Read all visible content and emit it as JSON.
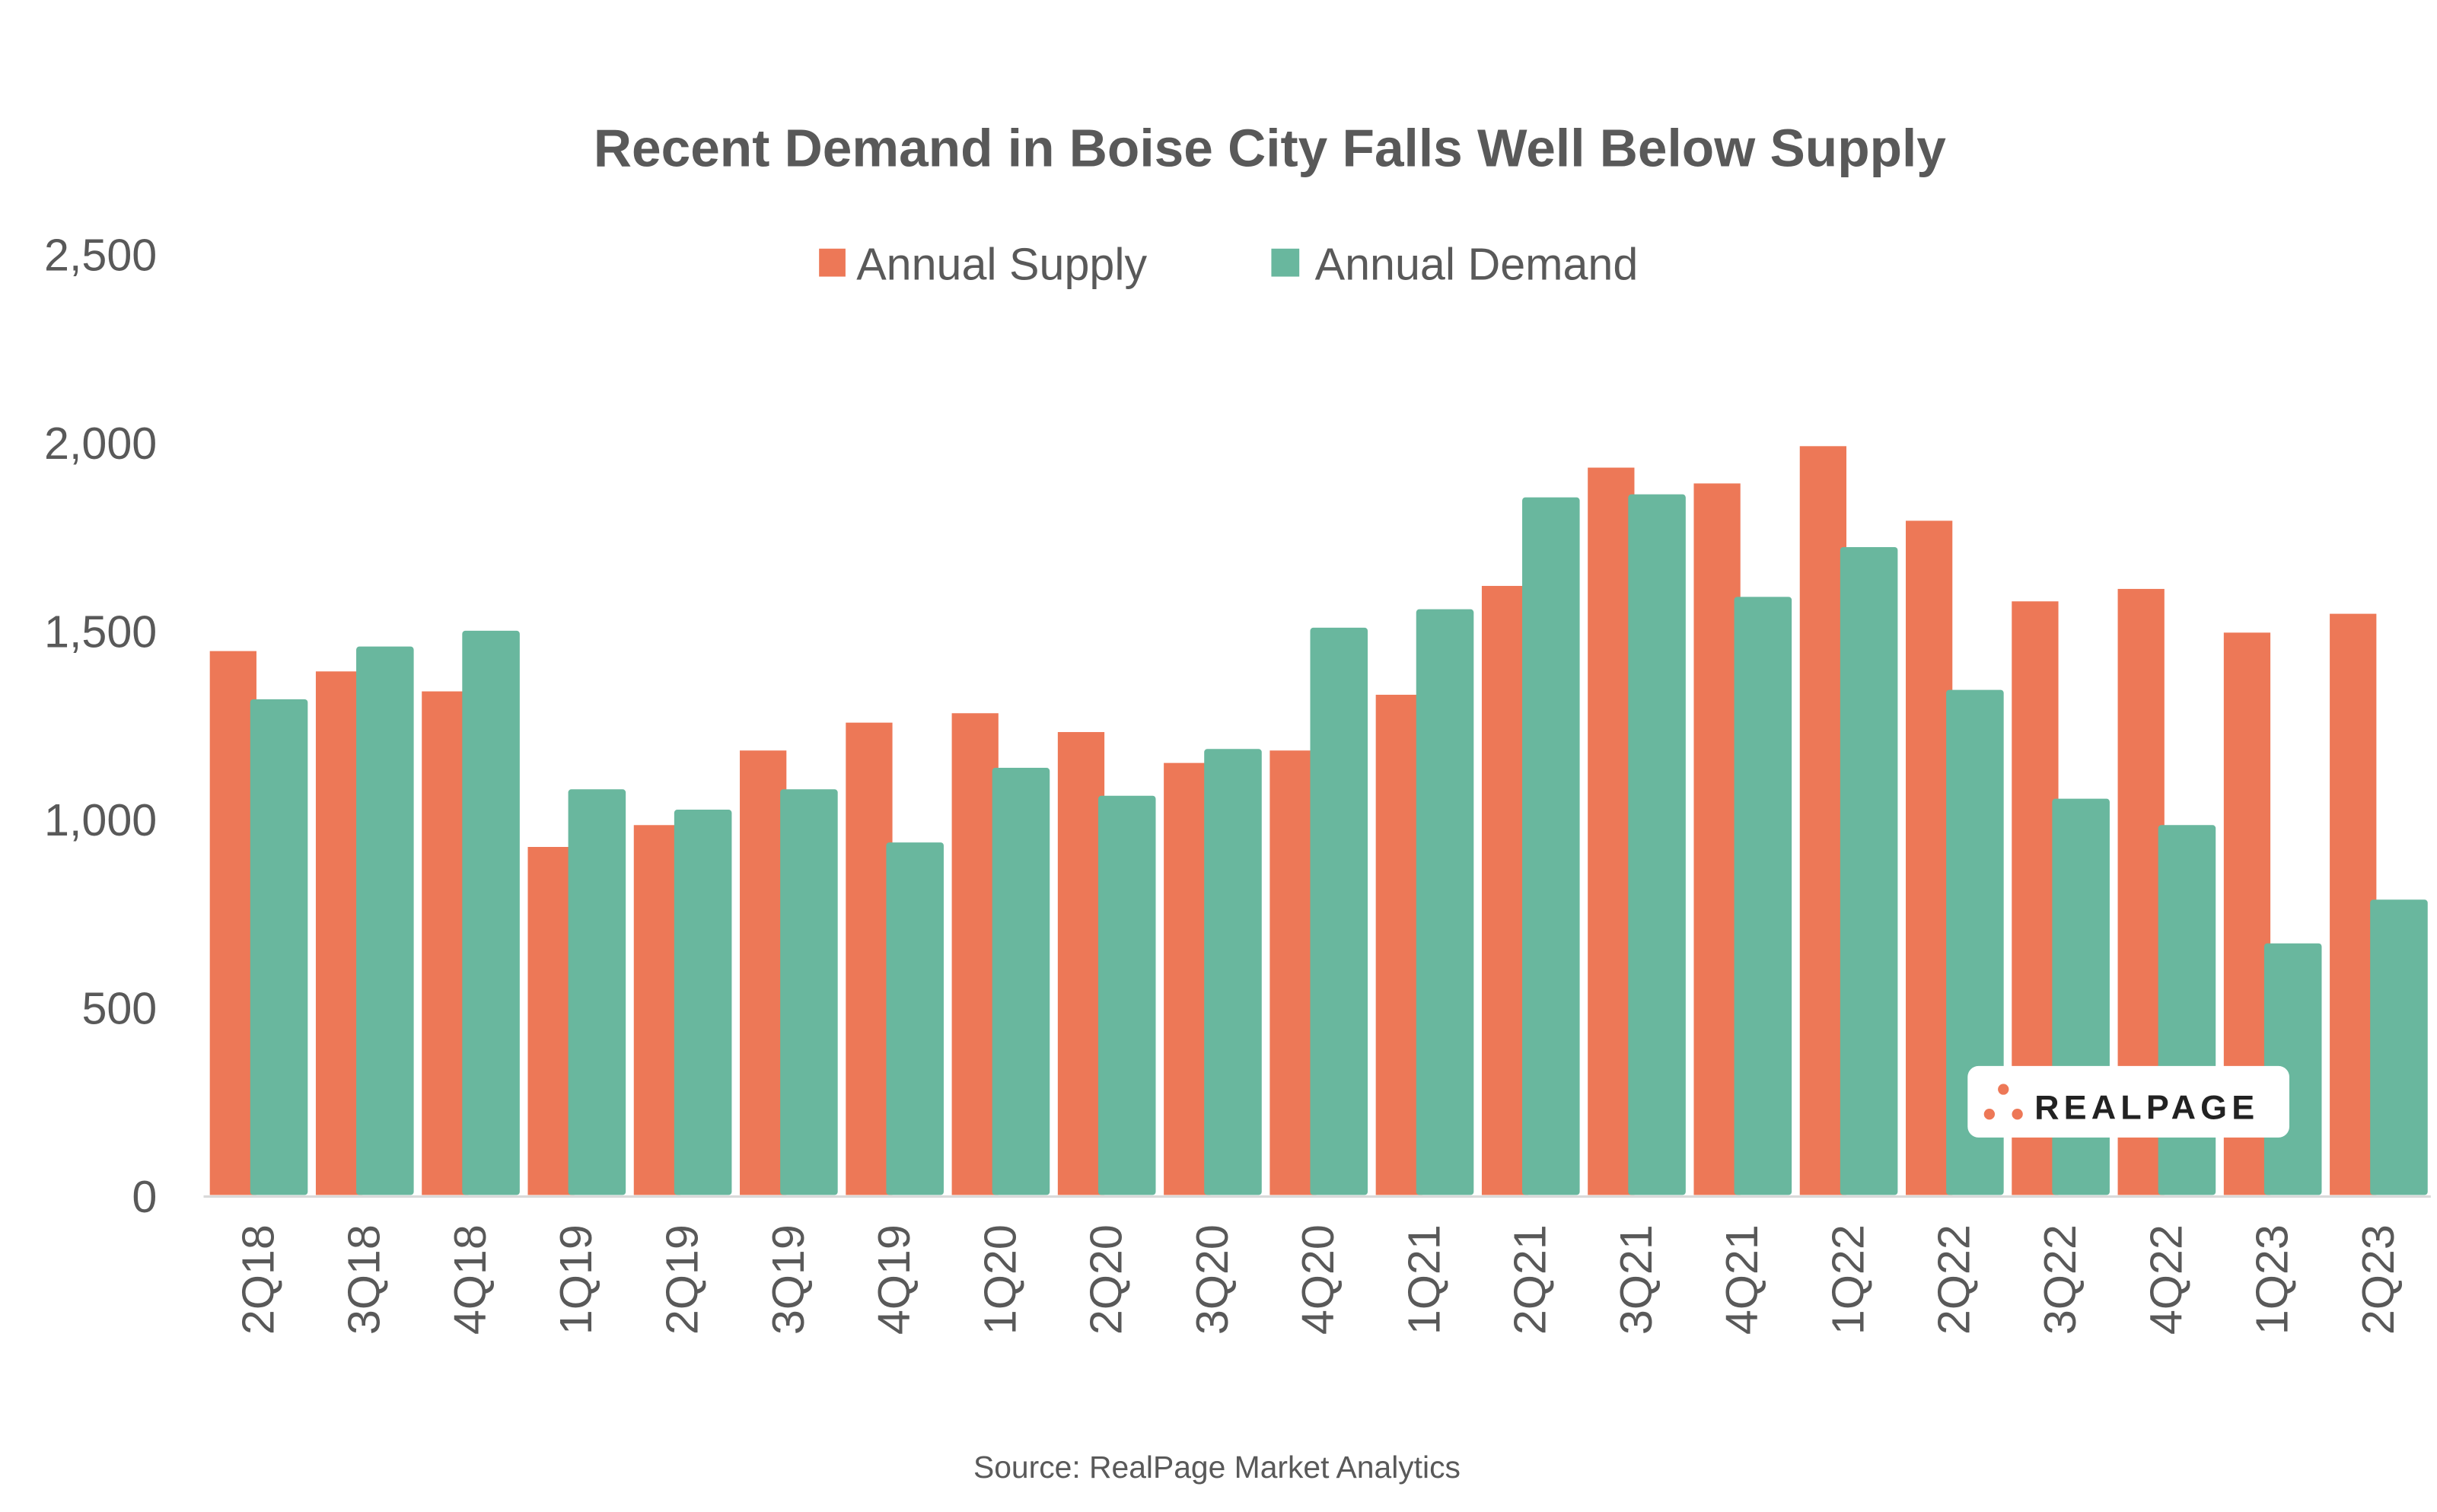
{
  "chart_data": {
    "type": "bar",
    "title": "Recent Demand in Boise City Falls Well Below Supply",
    "xlabel": "",
    "ylabel": "",
    "ylim": [
      0,
      2500
    ],
    "yticks": [
      "0",
      "500",
      "1,000",
      "1,500",
      "2,000",
      "2,500"
    ],
    "ytick_values": [
      0,
      500,
      1000,
      1500,
      2000,
      2500
    ],
    "grid": false,
    "legend_position": "top",
    "categories": [
      "2Q18",
      "3Q18",
      "4Q18",
      "1Q19",
      "2Q19",
      "3Q19",
      "4Q19",
      "1Q20",
      "2Q20",
      "3Q20",
      "4Q20",
      "1Q21",
      "2Q21",
      "3Q21",
      "4Q21",
      "1Q22",
      "2Q22",
      "3Q22",
      "4Q22",
      "1Q23",
      "2Q23"
    ],
    "series": [
      {
        "name": "Annual Supply",
        "color": "#ED7857",
        "values": [
          1444,
          1390,
          1337,
          924,
          982,
          1180,
          1254,
          1279,
          1229,
          1147,
          1180,
          1328,
          1617,
          1931,
          1889,
          1988,
          1790,
          1576,
          1609,
          1493,
          1543
        ]
      },
      {
        "name": "Annual Demand",
        "color": "#69B79E",
        "values": [
          1316,
          1456,
          1498,
          1077,
          1023,
          1077,
          936,
          1134,
          1060,
          1184,
          1506,
          1555,
          1852,
          1860,
          1588,
          1720,
          1341,
          1052,
          982,
          668,
          784
        ]
      }
    ],
    "source": "Source: RealPage Market Analytics"
  },
  "logo": {
    "text": "REALPAGE",
    "accent": "#ED7857"
  }
}
